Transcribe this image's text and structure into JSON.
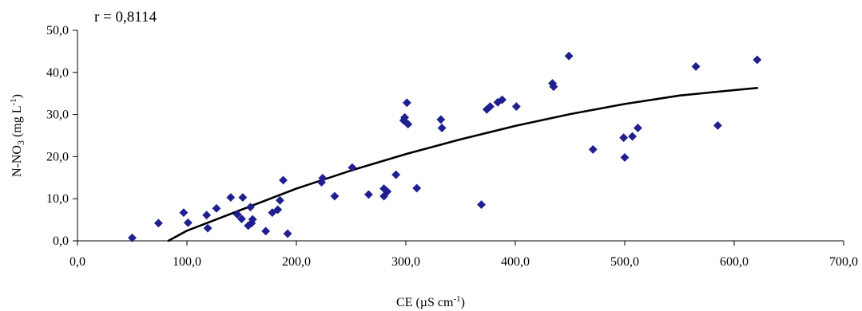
{
  "chart_data": {
    "type": "scatter",
    "annotation": "r = 0,8114",
    "xlabel": {
      "main": "CE (µS cm",
      "sup": "-1",
      "end": ")"
    },
    "ylabel": {
      "main": "N-NO",
      "sub": "3",
      "mid": " (mg L",
      "sup": "-1",
      "end": ")"
    },
    "xlim": [
      0,
      700
    ],
    "ylim": [
      0,
      50
    ],
    "xticks": [
      "0,0",
      "100,0",
      "200,0",
      "300,0",
      "400,0",
      "500,0",
      "600,0",
      "700,0"
    ],
    "yticks": [
      "0,0",
      "10,0",
      "20,0",
      "30,0",
      "40,0",
      "50,0"
    ],
    "marker_color": "#1f1f8f",
    "trend_color": "#000000",
    "points": [
      [
        50,
        0.7
      ],
      [
        74,
        4.2
      ],
      [
        97,
        6.7
      ],
      [
        101,
        4.3
      ],
      [
        118,
        6.1
      ],
      [
        119,
        3.0
      ],
      [
        127,
        7.7
      ],
      [
        140,
        10.3
      ],
      [
        146,
        6.3
      ],
      [
        150,
        5.2
      ],
      [
        151,
        10.3
      ],
      [
        156,
        3.6
      ],
      [
        158,
        8.0
      ],
      [
        159,
        4.2
      ],
      [
        160,
        5.1
      ],
      [
        172,
        2.3
      ],
      [
        178,
        6.7
      ],
      [
        183,
        7.4
      ],
      [
        185,
        9.6
      ],
      [
        188,
        14.4
      ],
      [
        192,
        1.7
      ],
      [
        223,
        13.9
      ],
      [
        224,
        14.9
      ],
      [
        235,
        10.6
      ],
      [
        251,
        17.4
      ],
      [
        266,
        11.0
      ],
      [
        280,
        10.6
      ],
      [
        280,
        12.4
      ],
      [
        283,
        11.7
      ],
      [
        291,
        15.7
      ],
      [
        298,
        28.6
      ],
      [
        299,
        29.3
      ],
      [
        301,
        32.8
      ],
      [
        302,
        27.7
      ],
      [
        310,
        12.5
      ],
      [
        332,
        28.8
      ],
      [
        333,
        26.8
      ],
      [
        369,
        8.6
      ],
      [
        374,
        31.2
      ],
      [
        377,
        31.9
      ],
      [
        384,
        32.9
      ],
      [
        388,
        33.5
      ],
      [
        401,
        31.9
      ],
      [
        434,
        37.4
      ],
      [
        435,
        36.6
      ],
      [
        449,
        43.9
      ],
      [
        471,
        21.7
      ],
      [
        499,
        24.5
      ],
      [
        500,
        19.8
      ],
      [
        507,
        24.8
      ],
      [
        512,
        26.8
      ],
      [
        565,
        41.4
      ],
      [
        585,
        27.4
      ],
      [
        621,
        43.0
      ]
    ],
    "trendline": [
      [
        83,
        0.0
      ],
      [
        100,
        2.4
      ],
      [
        150,
        7.4
      ],
      [
        200,
        12.4
      ],
      [
        250,
        16.7
      ],
      [
        300,
        20.6
      ],
      [
        350,
        24.1
      ],
      [
        400,
        27.3
      ],
      [
        450,
        30.1
      ],
      [
        500,
        32.5
      ],
      [
        550,
        34.5
      ],
      [
        600,
        35.8
      ],
      [
        621,
        36.3
      ]
    ]
  }
}
